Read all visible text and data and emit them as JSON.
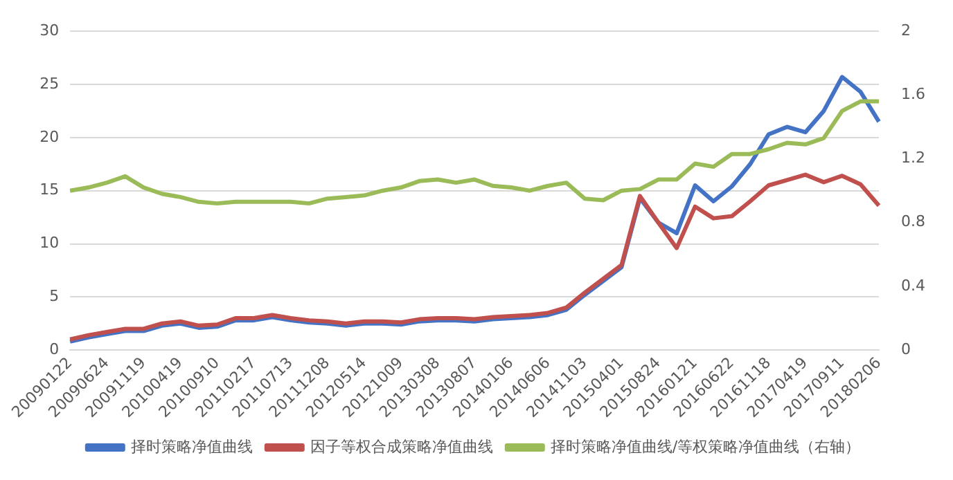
{
  "chart_data": {
    "type": "line",
    "categories": [
      "20090122",
      null,
      "20090624",
      null,
      "20091119",
      null,
      "20100419",
      null,
      "20100910",
      null,
      "20110217",
      null,
      "20110713",
      null,
      "20111208",
      null,
      "20120514",
      null,
      "20121009",
      null,
      "20130308",
      null,
      "20130807",
      null,
      "20140106",
      null,
      "20140606",
      null,
      "20141103",
      null,
      "20150401",
      null,
      "20150824",
      null,
      "20160121",
      null,
      "20160622",
      null,
      "20161118",
      null,
      "20170419",
      null,
      "20170911",
      null,
      "20180206"
    ],
    "series": [
      {
        "name": "择时策略净值曲线",
        "color": "#4472c4",
        "values": [
          0.8,
          1.2,
          1.5,
          1.8,
          1.8,
          2.3,
          2.5,
          2.1,
          2.2,
          2.8,
          2.8,
          3.1,
          2.8,
          2.6,
          2.5,
          2.3,
          2.5,
          2.5,
          2.4,
          2.7,
          2.8,
          2.8,
          2.7,
          2.9,
          3.0,
          3.1,
          3.3,
          3.8,
          5.2,
          6.5,
          7.8,
          14.3,
          12.0,
          11.0,
          15.5,
          14.0,
          15.4,
          17.5,
          20.3,
          21.0,
          20.5,
          22.5,
          25.7,
          24.3,
          21.5
        ]
      },
      {
        "name": "因子等权合成策略净值曲线",
        "color": "#c0504d",
        "values": [
          1.0,
          1.4,
          1.7,
          2.0,
          2.0,
          2.5,
          2.7,
          2.3,
          2.4,
          3.0,
          3.0,
          3.3,
          3.0,
          2.8,
          2.7,
          2.5,
          2.7,
          2.7,
          2.6,
          2.9,
          3.0,
          3.0,
          2.9,
          3.1,
          3.2,
          3.3,
          3.5,
          4.0,
          5.4,
          6.7,
          8.0,
          14.5,
          12.0,
          9.6,
          13.5,
          12.4,
          12.6,
          14.0,
          15.5,
          16.0,
          16.5,
          15.8,
          16.4,
          15.6,
          13.6
        ]
      },
      {
        "name": "择时策略净值曲线/等权策略净值曲线（右轴）",
        "color": "#9bbb59",
        "axis": "y2",
        "values": [
          1.0,
          1.02,
          1.05,
          1.09,
          1.02,
          0.98,
          0.96,
          0.93,
          0.92,
          0.93,
          0.93,
          0.93,
          0.93,
          0.92,
          0.95,
          0.96,
          0.97,
          1.0,
          1.02,
          1.06,
          1.07,
          1.05,
          1.07,
          1.03,
          1.02,
          1.0,
          1.03,
          1.05,
          0.95,
          0.94,
          1.0,
          1.01,
          1.07,
          1.07,
          1.17,
          1.15,
          1.23,
          1.23,
          1.26,
          1.3,
          1.29,
          1.33,
          1.5,
          1.56,
          1.56
        ]
      }
    ],
    "ylim": [
      0,
      30
    ],
    "yticks": [
      0,
      5,
      10,
      15,
      20,
      25,
      30
    ],
    "y2lim": [
      0,
      2
    ],
    "y2ticks": [
      0,
      0.4,
      0.8,
      1.2,
      1.6,
      2
    ],
    "grid": "y",
    "legend": "bottom",
    "marker": "none",
    "line_style": "solid"
  }
}
